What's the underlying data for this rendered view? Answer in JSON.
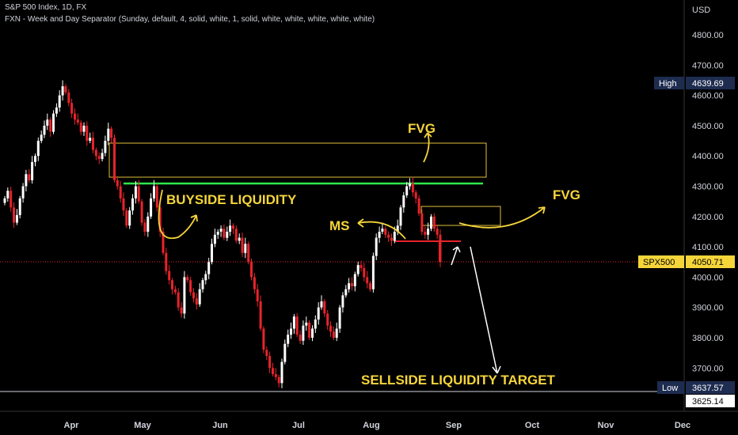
{
  "header": {
    "title": "S&P 500 Index, 1D, FX",
    "indicator": "FXN - Week and Day Separator (Sunday, default, 4, solid, white, 1, solid, white, white, white, white, white)"
  },
  "axis": {
    "currency": "USD",
    "y_ticks": [
      "4800.00",
      "4700.00",
      "4600.00",
      "4500.00",
      "4400.00",
      "4300.00",
      "4200.00",
      "4100.00",
      "4000.00",
      "3900.00",
      "3800.00",
      "3700.00"
    ],
    "x_ticks": [
      "Apr",
      "May",
      "Jun",
      "Jul",
      "Aug",
      "Sep",
      "Oct",
      "Nov",
      "Dec"
    ]
  },
  "price_tags": {
    "high": {
      "label": "High",
      "value": "4639.69"
    },
    "current": {
      "label": "SPX500",
      "value": "4050.71"
    },
    "low": {
      "label": "Low",
      "value": "3637.57"
    },
    "bottom": {
      "value": "3625.14"
    }
  },
  "annotations": {
    "fvg_top": "FVG",
    "fvg_right": "FVG",
    "buyside": "BUYSIDE LIQUIDITY",
    "ms": "MS",
    "sellside": "SELLSIDE LIQUIDITY TARGET"
  },
  "colors": {
    "bull": "#ffffff",
    "bear": "#e8232b",
    "annotation": "#f5d53a",
    "liquidity_line": "#2ee84a",
    "structure_line": "#e8232b",
    "axis_tag": "#1e2c50"
  },
  "chart_data": {
    "type": "candlestick",
    "title": "S&P 500 Index, 1D, FX",
    "y_unit": "USD",
    "ylim": [
      3600,
      4850
    ],
    "grid": false,
    "x_months": [
      "Apr",
      "May",
      "Jun",
      "Jul",
      "Aug",
      "Sep",
      "Oct",
      "Nov",
      "Dec"
    ],
    "high": 4639.69,
    "low": 3637.57,
    "last": 4050.71,
    "reference_low": 3625.14,
    "closes": [
      4260,
      4285,
      4230,
      4180,
      4205,
      4260,
      4300,
      4340,
      4320,
      4380,
      4400,
      4450,
      4470,
      4500,
      4520,
      4480,
      4540,
      4560,
      4600,
      4630,
      4610,
      4575,
      4540,
      4520,
      4510,
      4480,
      4500,
      4450,
      4460,
      4420,
      4400,
      4390,
      4410,
      4450,
      4490,
      4460,
      4320,
      4300,
      4260,
      4220,
      4170,
      4220,
      4260,
      4300,
      4250,
      4180,
      4150,
      4200,
      4260,
      4300,
      4230,
      4150,
      4080,
      4020,
      3990,
      3960,
      3950,
      3900,
      3880,
      4000,
      3990,
      3950,
      3930,
      3910,
      3960,
      3990,
      4010,
      4050,
      4110,
      4140,
      4150,
      4160,
      4130,
      4150,
      4170,
      4160,
      4120,
      4130,
      4080,
      4110,
      4050,
      4000,
      3960,
      3920,
      3830,
      3760,
      3740,
      3700,
      3680,
      3670,
      3650,
      3720,
      3780,
      3810,
      3830,
      3870,
      3810,
      3790,
      3840,
      3850,
      3800,
      3830,
      3860,
      3900,
      3920,
      3880,
      3840,
      3820,
      3800,
      3830,
      3900,
      3940,
      3960,
      3980,
      3970,
      4010,
      4040,
      4030,
      4000,
      3980,
      3960,
      4070,
      4130,
      4150,
      4160,
      4140,
      4130,
      4120,
      4150,
      4170,
      4230,
      4270,
      4300,
      4310,
      4280,
      4260,
      4210,
      4150,
      4140,
      4160,
      4200,
      4160,
      4140,
      4050
    ],
    "zones": [
      {
        "name": "FVG",
        "from": 4335,
        "to": 4445
      },
      {
        "name": "FVG",
        "from": 4175,
        "to": 4235
      }
    ],
    "levels": [
      {
        "name": "BUYSIDE LIQUIDITY",
        "value": 4312
      },
      {
        "name": "MS",
        "value": 4120
      },
      {
        "name": "SELLSIDE LIQUIDITY TARGET",
        "value": 3637.57
      }
    ]
  }
}
